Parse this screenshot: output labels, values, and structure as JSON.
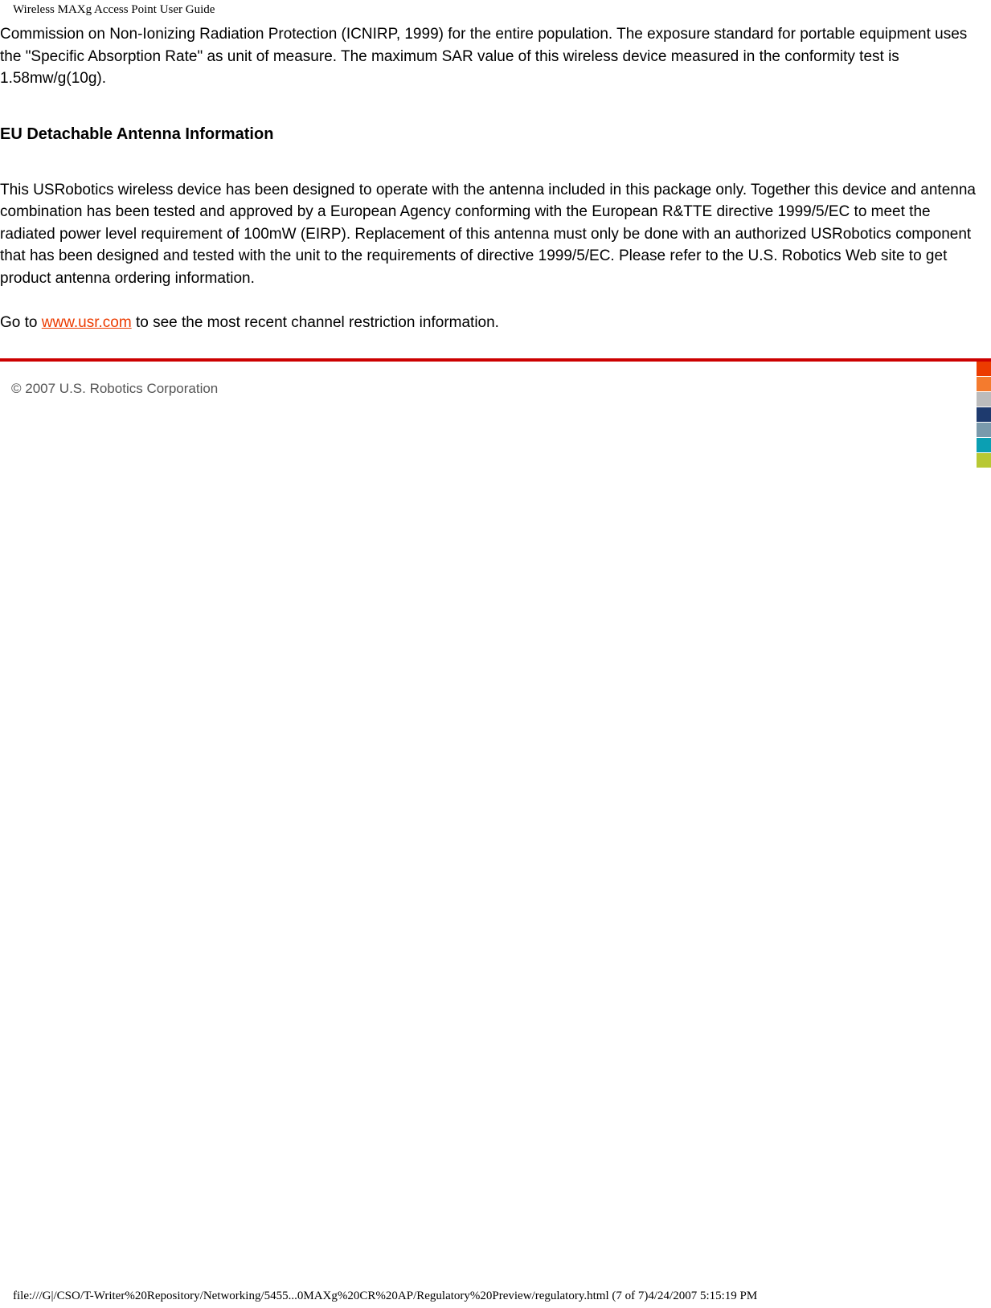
{
  "header": {
    "title": "Wireless MAXg Access Point User Guide"
  },
  "content": {
    "paragraph1": "Commission on Non-Ionizing Radiation Protection (ICNIRP, 1999) for the entire population. The exposure standard for portable equipment uses the \"Specific Absorption Rate\" as unit of measure. The maximum SAR value of this wireless device measured in the conformity test is 1.58mw/g(10g).",
    "heading": "EU Detachable Antenna Information",
    "paragraph2": "This USRobotics wireless device has been designed to operate with the antenna included in this package only. Together this device and antenna combination has been tested and approved by a European Agency conforming with the European R&TTE directive 1999/5/EC to meet the radiated power level requirement of 100mW (EIRP). Replacement of this antenna must only be done with an authorized USRobotics component that has been designed and tested with the unit to the requirements of directive 1999/5/EC. Please refer to the U.S. Robotics Web site to get product antenna ordering information.",
    "paragraph3_prefix": "Go to ",
    "link_text": "www.usr.com",
    "paragraph3_suffix": " to see the most recent channel restriction information."
  },
  "footer": {
    "copyright": "© 2007 U.S. Robotics Corporation",
    "path": "file:///G|/CSO/T-Writer%20Repository/Networking/5455...0MAXg%20CR%20AP/Regulatory%20Preview/regulatory.html (7 of 7)4/24/2007 5:15:19 PM"
  },
  "colors": {
    "divider": "#cc0000",
    "link": "#ec3b00",
    "copyright": "#555555",
    "boxes": [
      "#ec3b00",
      "#f47b2e",
      "#bcbcbc",
      "#1e3a6e",
      "#7a9aac",
      "#0b9fb3",
      "#b8c833"
    ]
  }
}
